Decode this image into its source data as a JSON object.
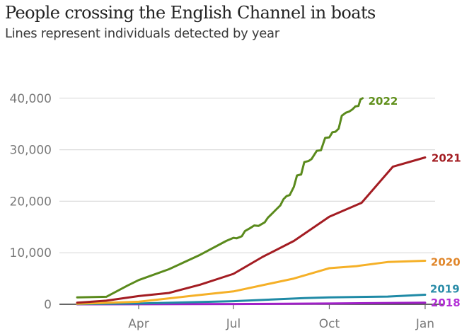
{
  "header": {
    "title": "People crossing the English Channel in boats",
    "subtitle": "Lines represent individuals detected by year"
  },
  "chart_data": {
    "type": "line",
    "title": "People crossing the English Channel in boats",
    "subtitle": "Lines represent individuals detected by year",
    "xlabel": "",
    "ylabel": "",
    "x_unit": "day of year",
    "xlim": [
      1,
      366
    ],
    "ylim": [
      0,
      40000
    ],
    "grid": true,
    "y_ticks": [
      {
        "value": 0,
        "label": "0"
      },
      {
        "value": 10000,
        "label": "10,000"
      },
      {
        "value": 20000,
        "label": "20,000"
      },
      {
        "value": 30000,
        "label": "30,000"
      },
      {
        "value": 40000,
        "label": "40,000"
      }
    ],
    "x_ticks": [
      {
        "value": 91,
        "label": "Apr"
      },
      {
        "value": 182,
        "label": "Jul"
      },
      {
        "value": 274,
        "label": "Oct"
      },
      {
        "value": 366,
        "label": "Jan"
      }
    ],
    "legend": "inline-line-end",
    "series": [
      {
        "name": "2018",
        "color": "#a020c8",
        "label_color": "#b22fd6",
        "points": [
          [
            32,
            0
          ],
          [
            100,
            20
          ],
          [
            182,
            60
          ],
          [
            274,
            150
          ],
          [
            366,
            300
          ]
        ]
      },
      {
        "name": "2019",
        "color": "#1f8aa6",
        "label_color": "#2a8ca8",
        "points": [
          [
            32,
            50
          ],
          [
            91,
            150
          ],
          [
            182,
            600
          ],
          [
            250,
            1200
          ],
          [
            274,
            1350
          ],
          [
            330,
            1500
          ],
          [
            366,
            1850
          ]
        ]
      },
      {
        "name": "2020",
        "color": "#f5b027",
        "label_color": "#e0862a",
        "points": [
          [
            32,
            100
          ],
          [
            91,
            500
          ],
          [
            140,
            1600
          ],
          [
            182,
            2500
          ],
          [
            240,
            5000
          ],
          [
            274,
            7000
          ],
          [
            300,
            7400
          ],
          [
            330,
            8200
          ],
          [
            366,
            8450
          ]
        ]
      },
      {
        "name": "2021",
        "color": "#a31c22",
        "label_color": "#a31c22",
        "points": [
          [
            32,
            300
          ],
          [
            60,
            700
          ],
          [
            91,
            1600
          ],
          [
            120,
            2200
          ],
          [
            150,
            3800
          ],
          [
            182,
            5900
          ],
          [
            210,
            9200
          ],
          [
            240,
            12300
          ],
          [
            274,
            17000
          ],
          [
            305,
            19700
          ],
          [
            335,
            26700
          ],
          [
            366,
            28500
          ]
        ]
      },
      {
        "name": "2022",
        "color": "#5a8a1c",
        "label_color": "#5f8f1a",
        "points": [
          [
            32,
            1350
          ],
          [
            60,
            1450
          ],
          [
            80,
            3600
          ],
          [
            91,
            4700
          ],
          [
            120,
            6800
          ],
          [
            150,
            9600
          ],
          [
            175,
            12300
          ],
          [
            182,
            12900
          ],
          [
            185,
            12800
          ],
          [
            190,
            13200
          ],
          [
            193,
            14200
          ],
          [
            198,
            14800
          ],
          [
            202,
            15300
          ],
          [
            206,
            15200
          ],
          [
            212,
            15900
          ],
          [
            215,
            16800
          ],
          [
            219,
            17600
          ],
          [
            223,
            18400
          ],
          [
            227,
            19200
          ],
          [
            230,
            20400
          ],
          [
            233,
            21000
          ],
          [
            236,
            21200
          ],
          [
            240,
            22800
          ],
          [
            243,
            25000
          ],
          [
            247,
            25200
          ],
          [
            250,
            27600
          ],
          [
            254,
            27800
          ],
          [
            257,
            28200
          ],
          [
            262,
            29800
          ],
          [
            266,
            29900
          ],
          [
            270,
            32300
          ],
          [
            274,
            32400
          ],
          [
            277,
            33400
          ],
          [
            280,
            33500
          ],
          [
            283,
            34100
          ],
          [
            286,
            36600
          ],
          [
            290,
            37200
          ],
          [
            293,
            37400
          ],
          [
            296,
            37800
          ],
          [
            299,
            38400
          ],
          [
            302,
            38500
          ],
          [
            304,
            39800
          ],
          [
            306,
            40000
          ]
        ]
      }
    ]
  }
}
